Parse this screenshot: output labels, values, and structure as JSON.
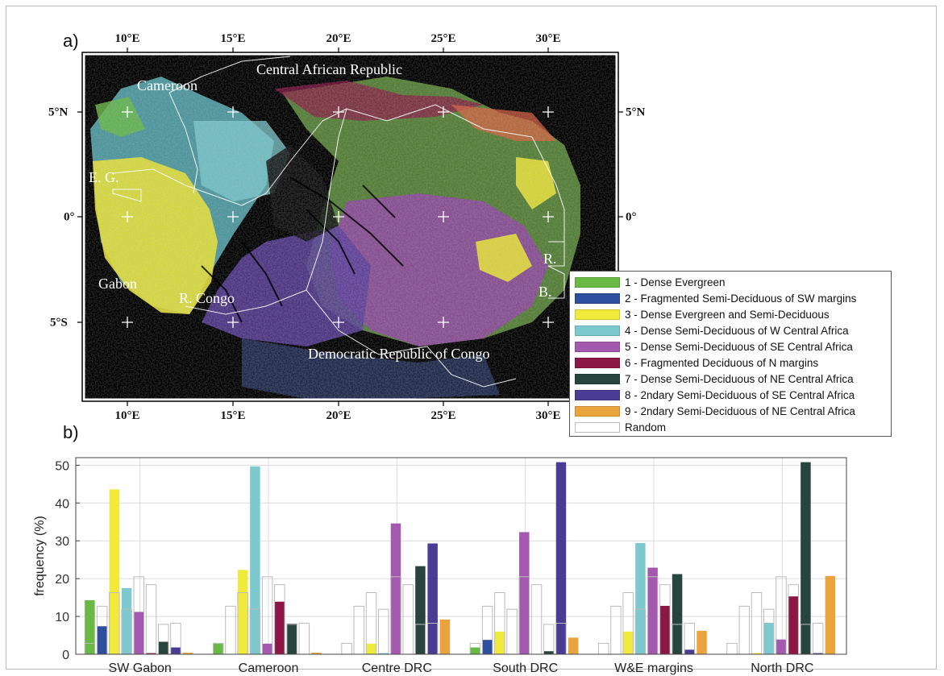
{
  "figure": {
    "panel_a_label": "a)",
    "panel_b_label": "b)"
  },
  "map": {
    "lon_ticks": [
      "10°E",
      "15°E",
      "20°E",
      "25°E",
      "30°E"
    ],
    "lat_ticks": [
      "5°N",
      "0°",
      "5°S"
    ],
    "place_labels": [
      "Cameroon",
      "Central African Republic",
      "E. G.",
      "Gabon",
      "R. Congo",
      "Democratic Republic of Congo",
      "R.",
      "B."
    ]
  },
  "legend": {
    "items": [
      {
        "label": "1 - Dense Evergreen",
        "color": "#6ab945"
      },
      {
        "label": "2 - Fragmented Semi-Deciduous of SW margins",
        "color": "#2f4f9e"
      },
      {
        "label": "3 - Dense Evergreen and Semi-Deciduous",
        "color": "#f0ea3c"
      },
      {
        "label": "4 - Dense Semi-Deciduous of W Central Africa",
        "color": "#7ec9cf"
      },
      {
        "label": "5 - Dense Semi-Deciduous of SE Central Africa",
        "color": "#a35aae"
      },
      {
        "label": "6 - Fragmented Deciduous of N margins",
        "color": "#8c1746"
      },
      {
        "label": "7 - Dense Semi-Deciduous of NE Central Africa",
        "color": "#27453c"
      },
      {
        "label": "8 - 2ndary Semi-Deciduous of SE Central Africa",
        "color": "#4a3b94"
      },
      {
        "label": "9 - 2ndary Semi-Deciduous of NE Central Africa",
        "color": "#eba43d"
      },
      {
        "label": "Random",
        "color": "#ffffff"
      }
    ]
  },
  "chart_data": {
    "type": "bar",
    "ylabel": "frequency (%)",
    "ylim": [
      0,
      52
    ],
    "yticks": [
      0,
      10,
      20,
      30,
      40,
      50
    ],
    "grid": true,
    "categories": [
      "SW Gabon",
      "Cameroon",
      "Centre DRC",
      "South DRC",
      "W&E margins",
      "North DRC"
    ],
    "series": [
      {
        "name": "1 - Dense Evergreen",
        "color": "#6ab945",
        "values": [
          14.3,
          2.8,
          0,
          1.8,
          0,
          0
        ]
      },
      {
        "name": "2 - Fragmented Semi-Deciduous of SW margins",
        "color": "#2f4f9e",
        "values": [
          7.4,
          0,
          0,
          3.8,
          0,
          0
        ]
      },
      {
        "name": "3 - Dense Evergreen and Semi-Deciduous",
        "color": "#f0ea3c",
        "values": [
          43.6,
          22.3,
          2.8,
          6.0,
          6.0,
          0.3
        ]
      },
      {
        "name": "4 - Dense Semi-Deciduous of W Central Africa",
        "color": "#7ec9cf",
        "values": [
          17.5,
          49.7,
          0.3,
          0,
          29.4,
          8.3
        ]
      },
      {
        "name": "5 - Dense Semi-Deciduous of SE Central Africa",
        "color": "#a35aae",
        "values": [
          11.2,
          2.8,
          34.6,
          32.3,
          22.9,
          3.9
        ]
      },
      {
        "name": "6 - Fragmented Deciduous of N margins",
        "color": "#8c1746",
        "values": [
          0.3,
          13.9,
          0,
          0,
          12.8,
          15.3
        ]
      },
      {
        "name": "7 - Dense Semi-Deciduous of NE Central Africa",
        "color": "#27453c",
        "values": [
          3.3,
          8.1,
          23.3,
          0.8,
          21.2,
          50.8
        ]
      },
      {
        "name": "8 - 2ndary Semi-Deciduous of SE Central Africa",
        "color": "#4a3b94",
        "values": [
          1.8,
          0,
          29.3,
          50.8,
          1.2,
          0.3
        ]
      },
      {
        "name": "9 - 2ndary Semi-Deciduous of NE Central Africa",
        "color": "#eba43d",
        "values": [
          0.4,
          0.4,
          9.2,
          4.4,
          6.2,
          20.7
        ]
      }
    ],
    "random_values": [
      2.9,
      12.7,
      16.3,
      11.9,
      20.5,
      18.4,
      7.9,
      8.2
    ]
  }
}
